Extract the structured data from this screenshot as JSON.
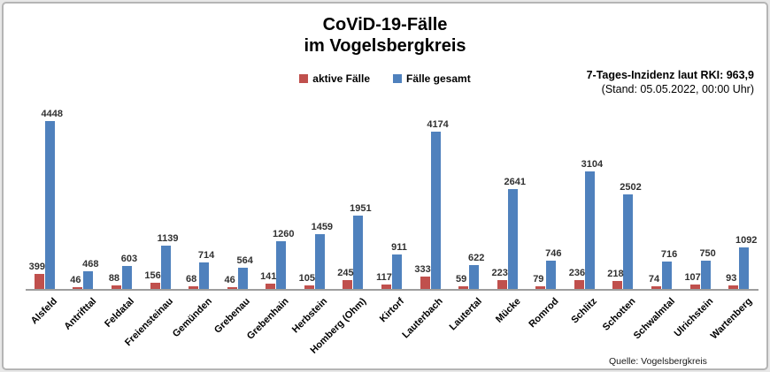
{
  "title": {
    "line1": "CoViD-19-Fälle",
    "line2": "im Vogelsbergkreis"
  },
  "annotation": {
    "line1": "7-Tages-Inzidenz laut RKI: 963,9",
    "line2": "(Stand: 05.05.2022, 00:00 Uhr)"
  },
  "legend": {
    "items": [
      {
        "label": "aktive Fälle",
        "color": "#C0504D"
      },
      {
        "label": "Fälle gesamt",
        "color": "#4F81BD"
      }
    ]
  },
  "source": {
    "text": "Quelle: Vogelsbergkreis"
  },
  "colors": {
    "active_cases": "#C0504D",
    "total_cases": "#4F81BD",
    "axis_line": "#9e9e9e",
    "value_label": "#303030"
  },
  "chart_data": {
    "type": "bar",
    "title": "CoViD-19-Fälle im Vogelsbergkreis",
    "xlabel": "",
    "ylabel": "",
    "ylim": [
      0,
      4500
    ],
    "grid": false,
    "legend_position": "top-center",
    "value_labels": true,
    "categories": [
      "Alsfeld",
      "Antrifttal",
      "Feldatal",
      "Freiensteinau",
      "Gemünden",
      "Grebenau",
      "Grebenhain",
      "Herbstein",
      "Homberg (Ohm)",
      "Kirtorf",
      "Lauterbach",
      "Lautertal",
      "Mücke",
      "Romrod",
      "Schlitz",
      "Schotten",
      "Schwalmtal",
      "Ulrichstein",
      "Wartenberg"
    ],
    "series": [
      {
        "name": "aktive Fälle",
        "color": "#C0504D",
        "values": [
          399,
          46,
          88,
          156,
          68,
          46,
          141,
          105,
          245,
          117,
          333,
          59,
          223,
          79,
          236,
          218,
          74,
          107,
          93
        ]
      },
      {
        "name": "Fälle gesamt",
        "color": "#4F81BD",
        "values": [
          4448,
          468,
          603,
          1139,
          714,
          564,
          1260,
          1459,
          1951,
          911,
          4174,
          622,
          2641,
          746,
          3104,
          2502,
          716,
          750,
          1092
        ]
      }
    ]
  }
}
